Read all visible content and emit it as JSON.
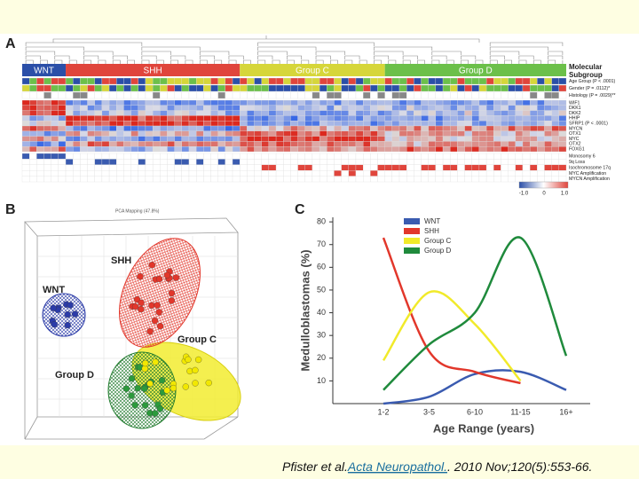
{
  "panel_a": {
    "label": "A",
    "subgroups": [
      "WNT",
      "SHH",
      "Group C",
      "Group D"
    ],
    "subgroup_title_lines": [
      "Molecular",
      "Subgroup"
    ],
    "row_labels": [
      "Age Group (P < .0001)",
      "Gender (P = .0112)*",
      "Histology (P = .0029)**",
      "WIF1",
      "DKK1",
      "DKK2",
      "HHIP",
      "SFRP1 (P < .0001)",
      "MYCN",
      "OTX1",
      "MYC",
      "OTX2",
      "FOXG1",
      "Monosomy 6",
      "9q Loss",
      "Isochromosome 17q",
      "MYC Amplification",
      "MYCN Amplification"
    ],
    "scale_labels": [
      "-1.0",
      "0",
      "1.0"
    ]
  },
  "panel_b": {
    "label": "B",
    "title": "PCA Mapping (47.8%)",
    "clusters": [
      "SHH",
      "WNT",
      "Group C",
      "Group D"
    ]
  },
  "chart_data": {
    "type": "line",
    "panel_label": "C",
    "x_label": "Age Range (years)",
    "y_label": "Medulloblastomas (%)",
    "categories": [
      "1-2",
      "3-5",
      "6-10",
      "11-15",
      "16+"
    ],
    "series": [
      {
        "name": "WNT",
        "color": "#3a5bb0",
        "values": [
          0,
          3,
          13,
          14,
          6
        ]
      },
      {
        "name": "SHH",
        "color": "#e2372b",
        "values": [
          73,
          23,
          14,
          9,
          null
        ]
      },
      {
        "name": "Group C",
        "color": "#f1ea2a",
        "values": [
          19,
          49,
          35,
          10,
          null
        ]
      },
      {
        "name": "Group D",
        "color": "#1f8a3c",
        "values": [
          6,
          26,
          40,
          73,
          21
        ]
      }
    ],
    "ylim": [
      0,
      82
    ],
    "yticks": [
      10,
      20,
      30,
      40,
      50,
      60,
      70,
      80
    ]
  },
  "citation": {
    "authors": "Pfister et al.",
    "journal": "Acta Neuropathol.",
    "details": ". 2010 Nov;120(5):553-66."
  }
}
